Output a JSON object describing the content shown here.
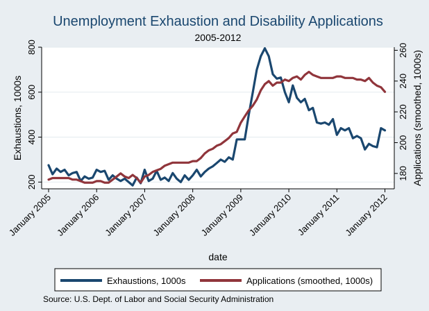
{
  "chart_data": {
    "type": "line",
    "title": "Unemployment Exhaustion and Disability Applications",
    "subtitle": "2005-2012",
    "xlabel": "date",
    "ylabel_left": "Exhaustions, 1000s",
    "ylabel_right": "Applications (smoothed, 1000s)",
    "x_ticks": [
      "January 2005",
      "January 2006",
      "January 2007",
      "January 2008",
      "January 2009",
      "January 2010",
      "January 2011",
      "January 2012"
    ],
    "xlim": [
      2005,
      2012.05
    ],
    "ylim_left": [
      170,
      800
    ],
    "ylim_right": [
      170,
      262
    ],
    "y_ticks_left": [
      200,
      400,
      600,
      800
    ],
    "y_ticks_right": [
      180,
      200,
      220,
      240,
      260
    ],
    "grid": "horizontal",
    "legend_position": "bottom",
    "background_color": "#e9eef2",
    "plot_background_color": "#ffffff",
    "grid_color": "#e3eaef",
    "source": "Source: U.S. Dept. of Labor and Social Security Administration",
    "series": [
      {
        "name": "Exhaustions, 1000s",
        "axis": "left",
        "color": "#1a476f",
        "x": [
          2005.0,
          2005.083,
          2005.167,
          2005.25,
          2005.333,
          2005.417,
          2005.5,
          2005.583,
          2005.667,
          2005.75,
          2005.833,
          2005.917,
          2006.0,
          2006.083,
          2006.167,
          2006.25,
          2006.333,
          2006.417,
          2006.5,
          2006.583,
          2006.667,
          2006.75,
          2006.833,
          2006.917,
          2007.0,
          2007.083,
          2007.167,
          2007.25,
          2007.333,
          2007.417,
          2007.5,
          2007.583,
          2007.667,
          2007.75,
          2007.833,
          2007.917,
          2008.0,
          2008.083,
          2008.167,
          2008.25,
          2008.333,
          2008.417,
          2008.5,
          2008.583,
          2008.667,
          2008.75,
          2008.833,
          2008.917,
          2009.0,
          2009.083,
          2009.167,
          2009.25,
          2009.333,
          2009.417,
          2009.5,
          2009.583,
          2009.667,
          2009.75,
          2009.833,
          2009.917,
          2010.0,
          2010.083,
          2010.167,
          2010.25,
          2010.333,
          2010.417,
          2010.5,
          2010.583,
          2010.667,
          2010.75,
          2010.833,
          2010.917,
          2011.0,
          2011.083,
          2011.167,
          2011.25,
          2011.333,
          2011.417,
          2011.5,
          2011.583,
          2011.667,
          2011.75,
          2011.833,
          2011.917,
          2012.0
        ],
        "values": [
          275,
          235,
          260,
          245,
          255,
          230,
          240,
          245,
          205,
          225,
          215,
          220,
          255,
          245,
          250,
          210,
          230,
          215,
          205,
          215,
          200,
          185,
          220,
          195,
          255,
          205,
          215,
          250,
          210,
          220,
          205,
          240,
          215,
          200,
          230,
          210,
          230,
          255,
          225,
          245,
          260,
          270,
          285,
          300,
          290,
          310,
          300,
          390,
          390,
          390,
          500,
          600,
          700,
          760,
          795,
          760,
          680,
          660,
          665,
          600,
          555,
          630,
          575,
          555,
          570,
          520,
          530,
          465,
          460,
          465,
          455,
          480,
          410,
          440,
          430,
          440,
          395,
          405,
          395,
          345,
          370,
          360,
          355,
          440,
          430
        ]
      },
      {
        "name": "Applications (smoothed, 1000s)",
        "axis": "right",
        "color": "#90353b",
        "x": [
          2005.0,
          2005.083,
          2005.167,
          2005.25,
          2005.333,
          2005.417,
          2005.5,
          2005.583,
          2005.667,
          2005.75,
          2005.833,
          2005.917,
          2006.0,
          2006.083,
          2006.167,
          2006.25,
          2006.333,
          2006.417,
          2006.5,
          2006.583,
          2006.667,
          2006.75,
          2006.833,
          2006.917,
          2007.0,
          2007.083,
          2007.167,
          2007.25,
          2007.333,
          2007.417,
          2007.5,
          2007.583,
          2007.667,
          2007.75,
          2007.833,
          2007.917,
          2008.0,
          2008.083,
          2008.167,
          2008.25,
          2008.333,
          2008.417,
          2008.5,
          2008.583,
          2008.667,
          2008.75,
          2008.833,
          2008.917,
          2009.0,
          2009.083,
          2009.167,
          2009.25,
          2009.333,
          2009.417,
          2009.5,
          2009.583,
          2009.667,
          2009.75,
          2009.833,
          2009.917,
          2010.0,
          2010.083,
          2010.167,
          2010.25,
          2010.333,
          2010.417,
          2010.5,
          2010.583,
          2010.667,
          2010.75,
          2010.833,
          2010.917,
          2011.0,
          2011.083,
          2011.167,
          2011.25,
          2011.333,
          2011.417,
          2011.5,
          2011.583,
          2011.667,
          2011.75,
          2011.833,
          2011.917,
          2012.0
        ],
        "values": [
          176,
          177,
          177,
          177,
          177,
          177,
          176,
          176,
          175,
          174,
          174,
          174,
          175,
          175,
          174,
          174,
          176,
          178,
          180,
          178,
          177,
          179,
          177,
          174,
          178,
          179,
          181,
          182,
          183,
          185,
          186,
          187,
          187,
          187,
          187,
          187,
          188,
          188,
          190,
          193,
          195,
          196,
          198,
          199,
          201,
          203,
          206,
          207,
          213,
          217,
          221,
          224,
          228,
          234,
          238,
          240,
          237,
          239,
          239,
          241,
          240,
          242,
          243,
          241,
          244,
          246,
          244,
          243,
          242,
          242,
          242,
          242,
          243,
          243,
          242,
          242,
          242,
          241,
          241,
          240,
          242,
          239,
          237,
          236,
          233
        ]
      }
    ]
  }
}
